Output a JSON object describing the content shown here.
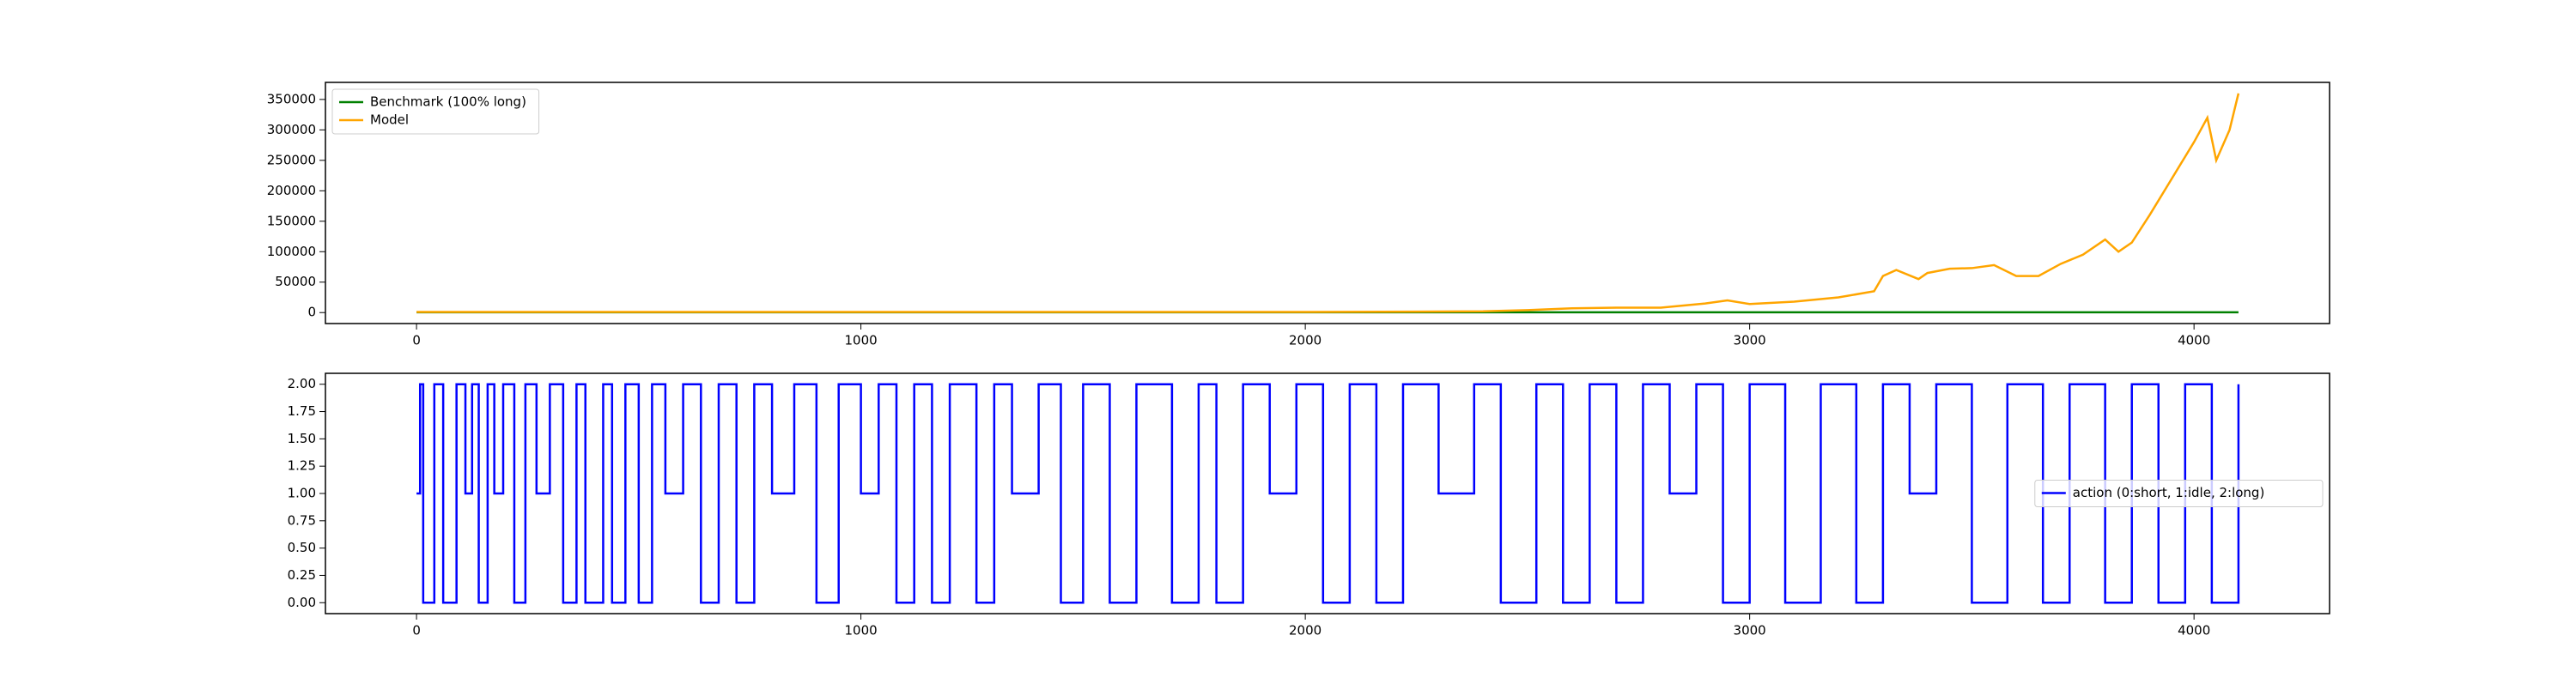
{
  "chart_data": [
    {
      "type": "line",
      "legend": "upper left",
      "xlim": [
        -205,
        4305
      ],
      "ylim": [
        -18000,
        378000
      ],
      "xticks": [
        0,
        1000,
        2000,
        3000,
        4000
      ],
      "yticks": [
        0,
        50000,
        100000,
        150000,
        200000,
        250000,
        300000,
        350000
      ],
      "series": [
        {
          "name": "Benchmark (100% long)",
          "color": "#008000",
          "x": [
            0,
            4100
          ],
          "values": [
            500,
            500
          ]
        },
        {
          "name": "Model",
          "color": "#ffa500",
          "x": [
            0,
            500,
            1000,
            1500,
            2000,
            2400,
            2500,
            2600,
            2700,
            2800,
            2900,
            2950,
            3000,
            3100,
            3200,
            3280,
            3300,
            3330,
            3380,
            3400,
            3450,
            3500,
            3550,
            3600,
            3650,
            3700,
            3750,
            3800,
            3830,
            3860,
            3900,
            3950,
            4000,
            4030,
            4050,
            4080,
            4100
          ],
          "values": [
            1000,
            1000,
            1000,
            1000,
            1000,
            2000,
            4000,
            7000,
            8000,
            8000,
            15000,
            20000,
            14000,
            18000,
            25000,
            35000,
            60000,
            70000,
            55000,
            65000,
            72000,
            73000,
            78000,
            60000,
            60000,
            80000,
            95000,
            120000,
            100000,
            115000,
            160000,
            220000,
            280000,
            320000,
            250000,
            300000,
            360000
          ]
        }
      ]
    },
    {
      "type": "line",
      "drawstyle": "steps-post",
      "legend": "center right",
      "xlim": [
        -205,
        4305
      ],
      "ylim": [
        -0.1,
        2.1
      ],
      "xticks": [
        0,
        1000,
        2000,
        3000,
        4000
      ],
      "yticks": [
        {
          "value": 0,
          "label": "0.00"
        },
        {
          "value": 0.25,
          "label": "0.25"
        },
        {
          "value": 0.5,
          "label": "0.50"
        },
        {
          "value": 0.75,
          "label": "0.75"
        },
        {
          "value": 1,
          "label": "1.00"
        },
        {
          "value": 1.25,
          "label": "1.25"
        },
        {
          "value": 1.5,
          "label": "1.50"
        },
        {
          "value": 1.75,
          "label": "1.75"
        },
        {
          "value": 2,
          "label": "2.00"
        }
      ],
      "series": [
        {
          "name": "action (0:short, 1:idle, 2:long)",
          "color": "#0000ff",
          "x": [
            0,
            8,
            15,
            40,
            60,
            90,
            110,
            125,
            140,
            160,
            175,
            195,
            220,
            245,
            270,
            300,
            330,
            360,
            380,
            420,
            440,
            470,
            500,
            530,
            560,
            600,
            640,
            680,
            720,
            760,
            800,
            850,
            900,
            950,
            1000,
            1040,
            1080,
            1120,
            1160,
            1200,
            1260,
            1300,
            1340,
            1400,
            1450,
            1500,
            1560,
            1620,
            1700,
            1760,
            1800,
            1860,
            1920,
            1980,
            2040,
            2100,
            2160,
            2220,
            2300,
            2380,
            2440,
            2520,
            2580,
            2640,
            2700,
            2760,
            2820,
            2880,
            2940,
            3000,
            3080,
            3160,
            3240,
            3300,
            3360,
            3420,
            3500,
            3580,
            3660,
            3720,
            3800,
            3860,
            3920,
            3980,
            4040,
            4100
          ],
          "values": [
            1,
            2,
            0,
            2,
            0,
            2,
            1,
            2,
            0,
            2,
            1,
            2,
            0,
            2,
            1,
            2,
            0,
            2,
            0,
            2,
            0,
            2,
            0,
            2,
            1,
            2,
            0,
            2,
            0,
            2,
            1,
            2,
            0,
            2,
            1,
            2,
            0,
            2,
            0,
            2,
            0,
            2,
            1,
            2,
            0,
            2,
            0,
            2,
            0,
            2,
            0,
            2,
            1,
            2,
            0,
            2,
            0,
            2,
            1,
            2,
            0,
            2,
            0,
            2,
            0,
            2,
            1,
            2,
            0,
            2,
            0,
            2,
            0,
            2,
            1,
            2,
            0,
            2,
            0,
            2,
            0,
            2,
            0,
            2,
            0,
            2
          ]
        }
      ]
    }
  ]
}
